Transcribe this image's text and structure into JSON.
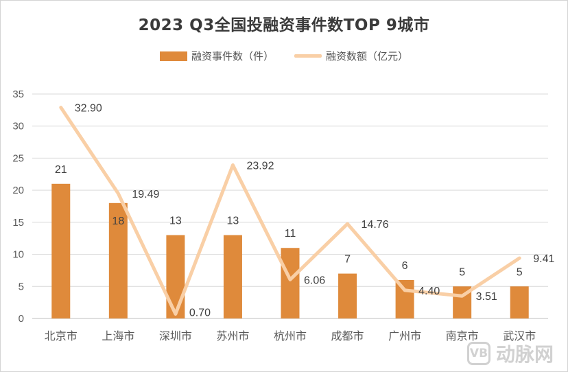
{
  "chart_data": {
    "type": "bar",
    "title": "2023 Q3全国投融资事件数TOP 9城市",
    "categories": [
      "北京市",
      "上海市",
      "深圳市",
      "苏州市",
      "杭州市",
      "成都市",
      "广州市",
      "南京市",
      "武汉市"
    ],
    "series": [
      {
        "name": "融资事件数（件）",
        "type": "bar",
        "values": [
          21,
          18,
          13,
          13,
          11,
          7,
          6,
          5,
          5
        ],
        "labels": [
          "21",
          "18",
          "13",
          "13",
          "11",
          "7",
          "6",
          "5",
          "5"
        ],
        "color": "#df8a3b"
      },
      {
        "name": "融资数额（亿元）",
        "type": "line",
        "values": [
          32.9,
          19.49,
          0.7,
          23.92,
          6.06,
          14.76,
          4.4,
          3.51,
          9.41
        ],
        "labels": [
          "32.90",
          "19.49",
          "0.70",
          "23.92",
          "6.06",
          "14.76",
          "4.40",
          "3.51",
          "9.41"
        ],
        "color": "#f9cfa6"
      }
    ],
    "ylim": [
      0,
      35
    ],
    "yticks": [
      "0",
      "5",
      "10",
      "15",
      "20",
      "25",
      "30",
      "35"
    ],
    "grid": true,
    "legend": "top-center"
  },
  "watermark": {
    "logo": "VB",
    "text": "动脉网"
  }
}
